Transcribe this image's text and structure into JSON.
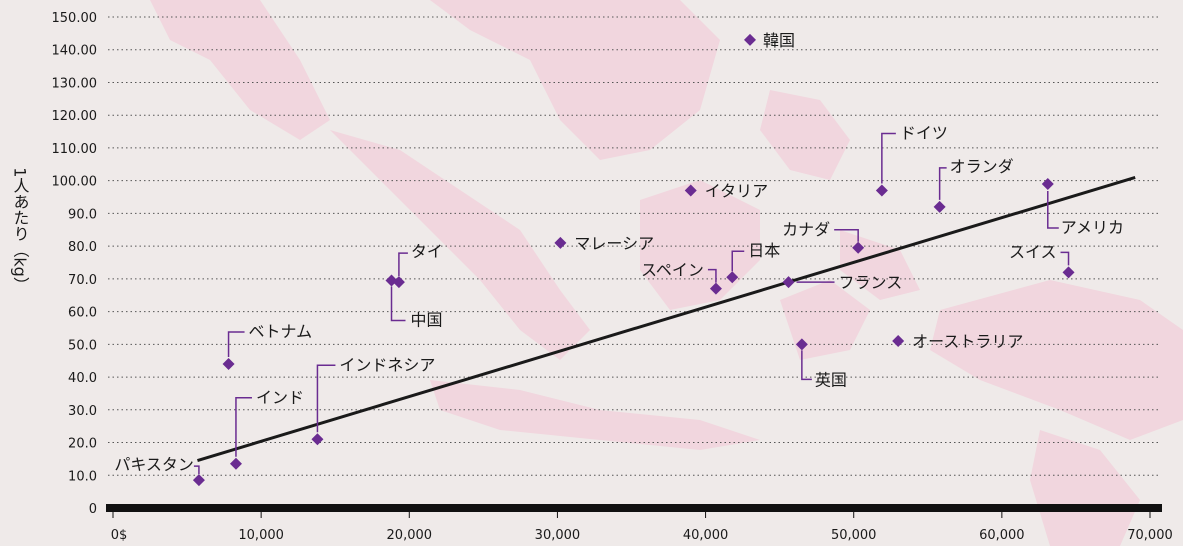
{
  "chart_data": {
    "type": "scatter",
    "title": "",
    "xlabel": "",
    "ylabel": "1人あたり（kg）",
    "xlim": [
      0,
      70000
    ],
    "ylim": [
      0,
      150
    ],
    "x_ticks": [
      0,
      10000,
      20000,
      30000,
      40000,
      50000,
      60000,
      70000
    ],
    "x_tick_labels": [
      "0$",
      "10,000",
      "20,000",
      "30,000",
      "40,000",
      "50,000",
      "60,000",
      "70,000"
    ],
    "y_ticks": [
      0,
      10,
      20,
      30,
      40,
      50,
      60,
      70,
      80,
      90,
      100,
      110,
      120,
      130,
      140,
      150
    ],
    "y_tick_labels": [
      "0",
      "10.0",
      "20.0",
      "30.0",
      "40.0",
      "50.0",
      "60.0",
      "70.0",
      "80.0",
      "90.0",
      "100.00",
      "110.00",
      "120.00",
      "130.00",
      "140.00",
      "150.00"
    ],
    "grid": "horizontal dotted",
    "marker_color": "#6a2c91",
    "trend_line": {
      "color": "#1a1a1a",
      "points": [
        [
          5700,
          14.5
        ],
        [
          69000,
          101
        ]
      ]
    },
    "points": [
      {
        "label": "パキスタン",
        "x": 5800,
        "y": 8.5
      },
      {
        "label": "ベトナム",
        "x": 7800,
        "y": 44
      },
      {
        "label": "インド",
        "x": 8300,
        "y": 13.5
      },
      {
        "label": "インドネシア",
        "x": 13800,
        "y": 21
      },
      {
        "label": "タイ",
        "x": 19300,
        "y": 69
      },
      {
        "label": "中国",
        "x": 18800,
        "y": 69.5
      },
      {
        "label": "マレーシア",
        "x": 30200,
        "y": 81
      },
      {
        "label": "イタリア",
        "x": 39000,
        "y": 97
      },
      {
        "label": "スペイン",
        "x": 40700,
        "y": 67
      },
      {
        "label": "日本",
        "x": 41800,
        "y": 70.5
      },
      {
        "label": "韓国",
        "x": 43000,
        "y": 143
      },
      {
        "label": "フランス",
        "x": 45600,
        "y": 69
      },
      {
        "label": "英国",
        "x": 46500,
        "y": 50
      },
      {
        "label": "カナダ",
        "x": 50300,
        "y": 79.5
      },
      {
        "label": "ドイツ",
        "x": 51900,
        "y": 97
      },
      {
        "label": "オーストラリア",
        "x": 53000,
        "y": 51
      },
      {
        "label": "オランダ",
        "x": 55800,
        "y": 92
      },
      {
        "label": "アメリカ",
        "x": 63100,
        "y": 99
      },
      {
        "label": "スイス",
        "x": 64500,
        "y": 72
      }
    ]
  }
}
